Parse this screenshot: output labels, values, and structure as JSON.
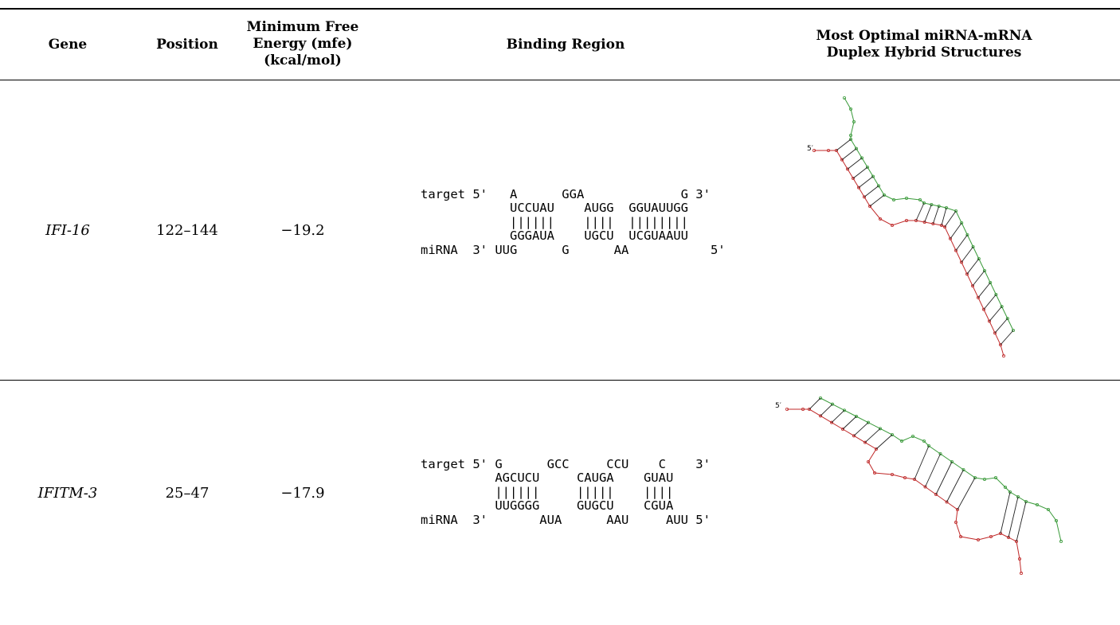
{
  "table": {
    "headers": {
      "gene": "Gene",
      "position": "Position",
      "mfe": [
        "Minimum Free",
        "Energy (mfe)",
        "(kcal/mol)"
      ],
      "binding": "Binding Region",
      "structure": [
        "Most Optimal miRNA-mRNA",
        "Duplex Hybrid Structures"
      ]
    },
    "rows": [
      {
        "gene": "IFI-16",
        "position": "122–144",
        "mfe": "−19.2",
        "binding": [
          "target 5'   A      GGA             G 3'",
          "            UCCUAU    AUGG  GGUAUUGG",
          "            ||||||    ||||  ||||||||",
          "            GGGAUA    UGCU  UCGUAAUU",
          "miRNA  3' UUG      G      AA           5'"
        ],
        "structure": {
          "five_prime": "5′",
          "target_color": "#3a9a3a",
          "mirna_color": "#c02a2a"
        }
      },
      {
        "gene": "IFITM-3",
        "position": "25–47",
        "mfe": "−17.9",
        "binding": [
          "target 5' G      GCC     CCU    C    3'",
          "          AGCUCU     CAUGA    GUAU",
          "          ||||||     |||||    ||||",
          "          UUGGGG     GUGCU    CGUA",
          "miRNA  3'       AUA      AAU     AUU 5'"
        ],
        "structure": {
          "five_prime": "5′",
          "target_color": "#3a9a3a",
          "mirna_color": "#c02a2a"
        }
      }
    ]
  }
}
